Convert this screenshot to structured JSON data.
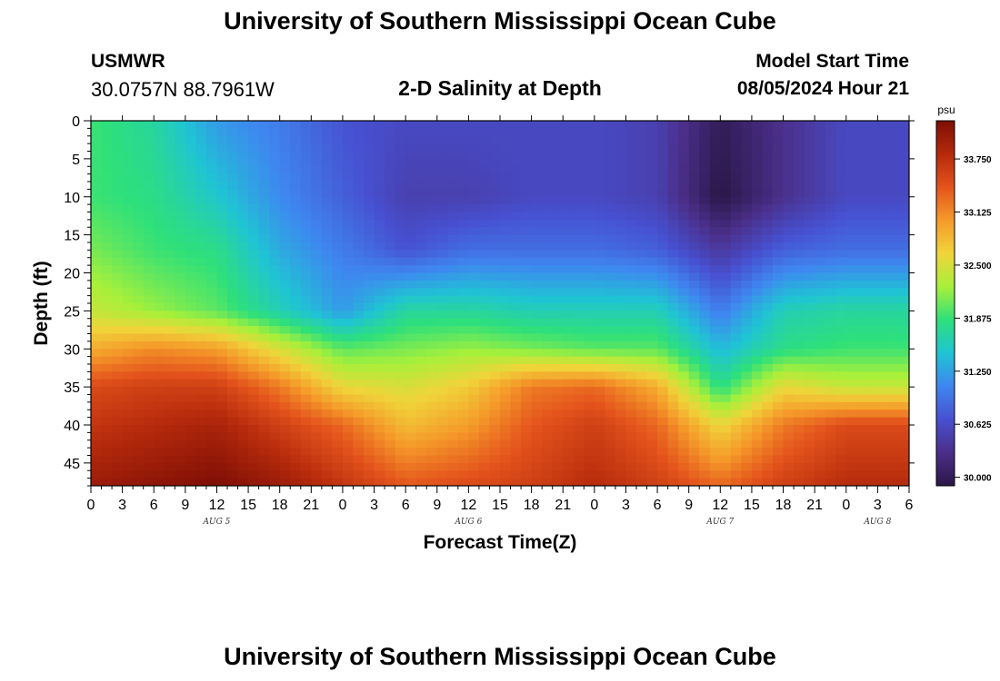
{
  "header": {
    "title": "University of Southern Mississippi Ocean Cube",
    "station": "USMWR",
    "coords": "30.0757N  88.7961W",
    "subtitle": "2-D Salinity at Depth",
    "model_start_label": "Model Start Time",
    "model_start_value": "08/05/2024 Hour 21"
  },
  "footer": {
    "title": "University of Southern Mississippi Ocean Cube"
  },
  "chart_data": {
    "type": "heatmap",
    "xlabel": "Forecast Time(Z)",
    "ylabel": "Depth (ft)",
    "x_hours": [
      0,
      78
    ],
    "x_tick_labels": [
      "0",
      "3",
      "6",
      "9",
      "12",
      "15",
      "18",
      "21",
      "0",
      "3",
      "6",
      "9",
      "12",
      "15",
      "18",
      "21",
      "0",
      "3",
      "6",
      "9",
      "12",
      "15",
      "18",
      "21",
      "0",
      "3",
      "6"
    ],
    "date_labels": [
      {
        "text": "AUG 5",
        "hour": 12
      },
      {
        "text": "AUG 6",
        "hour": 36
      },
      {
        "text": "AUG 7",
        "hour": 60
      },
      {
        "text": "AUG 8",
        "hour": 75
      }
    ],
    "ylim": [
      0,
      48
    ],
    "y_ticks": [
      "0",
      "5",
      "10",
      "15",
      "20",
      "25",
      "30",
      "35",
      "40",
      "45"
    ],
    "colorbar": {
      "unit": "psu",
      "range": [
        29.9,
        34.2
      ],
      "tick_labels": [
        "30.000",
        "30.625",
        "31.250",
        "31.875",
        "32.500",
        "33.125",
        "33.750"
      ],
      "colors": [
        "#2a1747",
        "#4b2f8a",
        "#4750d0",
        "#3f86f0",
        "#1fc4d4",
        "#2ee07a",
        "#a7f03a",
        "#f0d43a",
        "#f59a2a",
        "#e4531c",
        "#b52a0c",
        "#7f0e05"
      ]
    },
    "field": {
      "description_hours": [
        0,
        6,
        12,
        18,
        24,
        30,
        36,
        42,
        48,
        54,
        60,
        66,
        72,
        78
      ],
      "depths_ft": [
        0,
        10,
        17,
        25,
        30,
        35,
        40,
        48
      ],
      "salinity_psu": [
        [
          31.9,
          31.7,
          31.2,
          31.0,
          30.7,
          30.6,
          30.6,
          30.6,
          30.6,
          30.5,
          30.0,
          30.3,
          30.6,
          30.6
        ],
        [
          31.9,
          31.8,
          31.5,
          31.1,
          30.8,
          30.5,
          30.5,
          30.6,
          30.6,
          30.5,
          29.9,
          30.3,
          30.6,
          30.6
        ],
        [
          32.1,
          31.9,
          31.8,
          31.3,
          31.0,
          30.7,
          30.9,
          30.9,
          30.9,
          30.8,
          30.4,
          30.8,
          30.9,
          30.9
        ],
        [
          32.4,
          32.2,
          32.0,
          31.6,
          31.2,
          31.7,
          31.7,
          31.6,
          31.6,
          31.6,
          31.0,
          31.6,
          31.7,
          31.7
        ],
        [
          32.9,
          33.1,
          33.0,
          32.5,
          32.0,
          32.1,
          32.2,
          32.1,
          32.0,
          32.0,
          31.4,
          31.8,
          31.9,
          31.9
        ],
        [
          33.5,
          33.6,
          33.6,
          33.2,
          32.6,
          32.5,
          32.7,
          33.2,
          33.3,
          32.9,
          31.8,
          32.6,
          32.4,
          32.4
        ],
        [
          33.7,
          33.8,
          33.9,
          33.6,
          33.3,
          32.8,
          33.0,
          33.4,
          33.6,
          33.3,
          32.6,
          33.2,
          33.5,
          33.5
        ],
        [
          34.0,
          34.1,
          34.2,
          34.0,
          33.7,
          33.4,
          33.5,
          33.6,
          33.8,
          33.6,
          33.3,
          33.6,
          33.8,
          33.8
        ]
      ]
    }
  }
}
